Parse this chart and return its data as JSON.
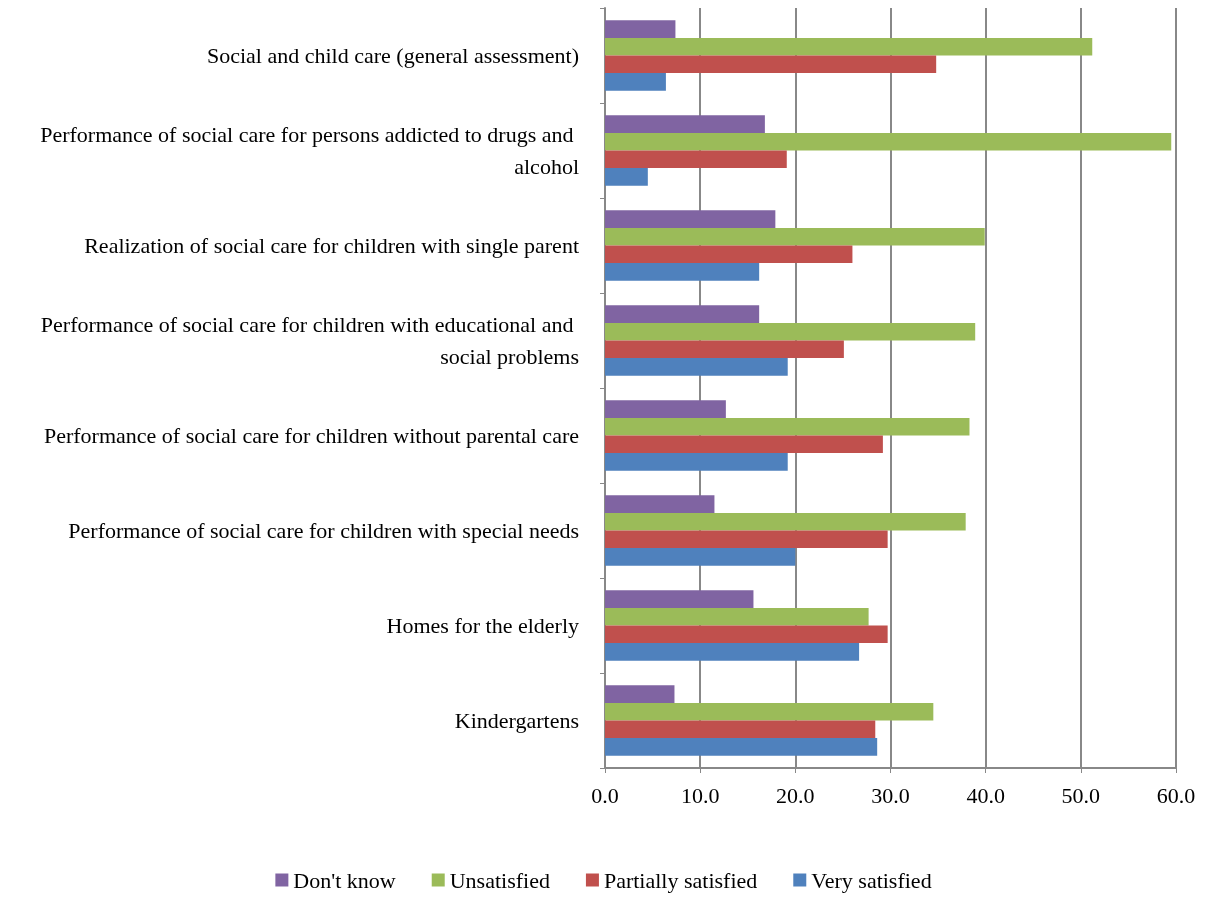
{
  "chart_data": {
    "type": "bar",
    "orientation": "horizontal",
    "categories": [
      "Social and child care (general assessment)",
      "Performance of social care for persons addicted to drugs and alcohol",
      "Realization of social care for children with single parent",
      "Performance of social care for children with educational and social problems",
      "Performance of social care for children without parental care",
      "Performance of social care for children with special needs",
      "Homes for the elderly",
      "Kindergartens"
    ],
    "series": [
      {
        "name": "Don't know",
        "color": "#8064a2",
        "values": [
          7.4,
          16.8,
          17.9,
          16.2,
          12.7,
          11.5,
          15.6,
          7.3
        ]
      },
      {
        "name": "Unsatisfied",
        "color": "#9bbb59",
        "values": [
          51.2,
          59.5,
          39.9,
          38.9,
          38.3,
          37.9,
          27.7,
          34.5
        ]
      },
      {
        "name": "Partially satisfied",
        "color": "#c0504d",
        "values": [
          34.8,
          19.1,
          26.0,
          25.1,
          29.2,
          29.7,
          29.7,
          28.4
        ]
      },
      {
        "name": "Very satisfied",
        "color": "#4f81bd",
        "values": [
          6.4,
          4.5,
          16.2,
          19.2,
          19.2,
          20.0,
          26.7,
          28.6
        ]
      }
    ],
    "xlim": [
      0,
      60
    ],
    "xticks": [
      {
        "value": 0,
        "label": "0.0"
      },
      {
        "value": 10,
        "label": "10.0"
      },
      {
        "value": 20,
        "label": "20.0"
      },
      {
        "value": 30,
        "label": "30.0"
      },
      {
        "value": 40,
        "label": "40.0"
      },
      {
        "value": 50,
        "label": "50.0"
      },
      {
        "value": 60,
        "label": "60.0"
      }
    ],
    "grid": "x",
    "legend": "bottom"
  }
}
